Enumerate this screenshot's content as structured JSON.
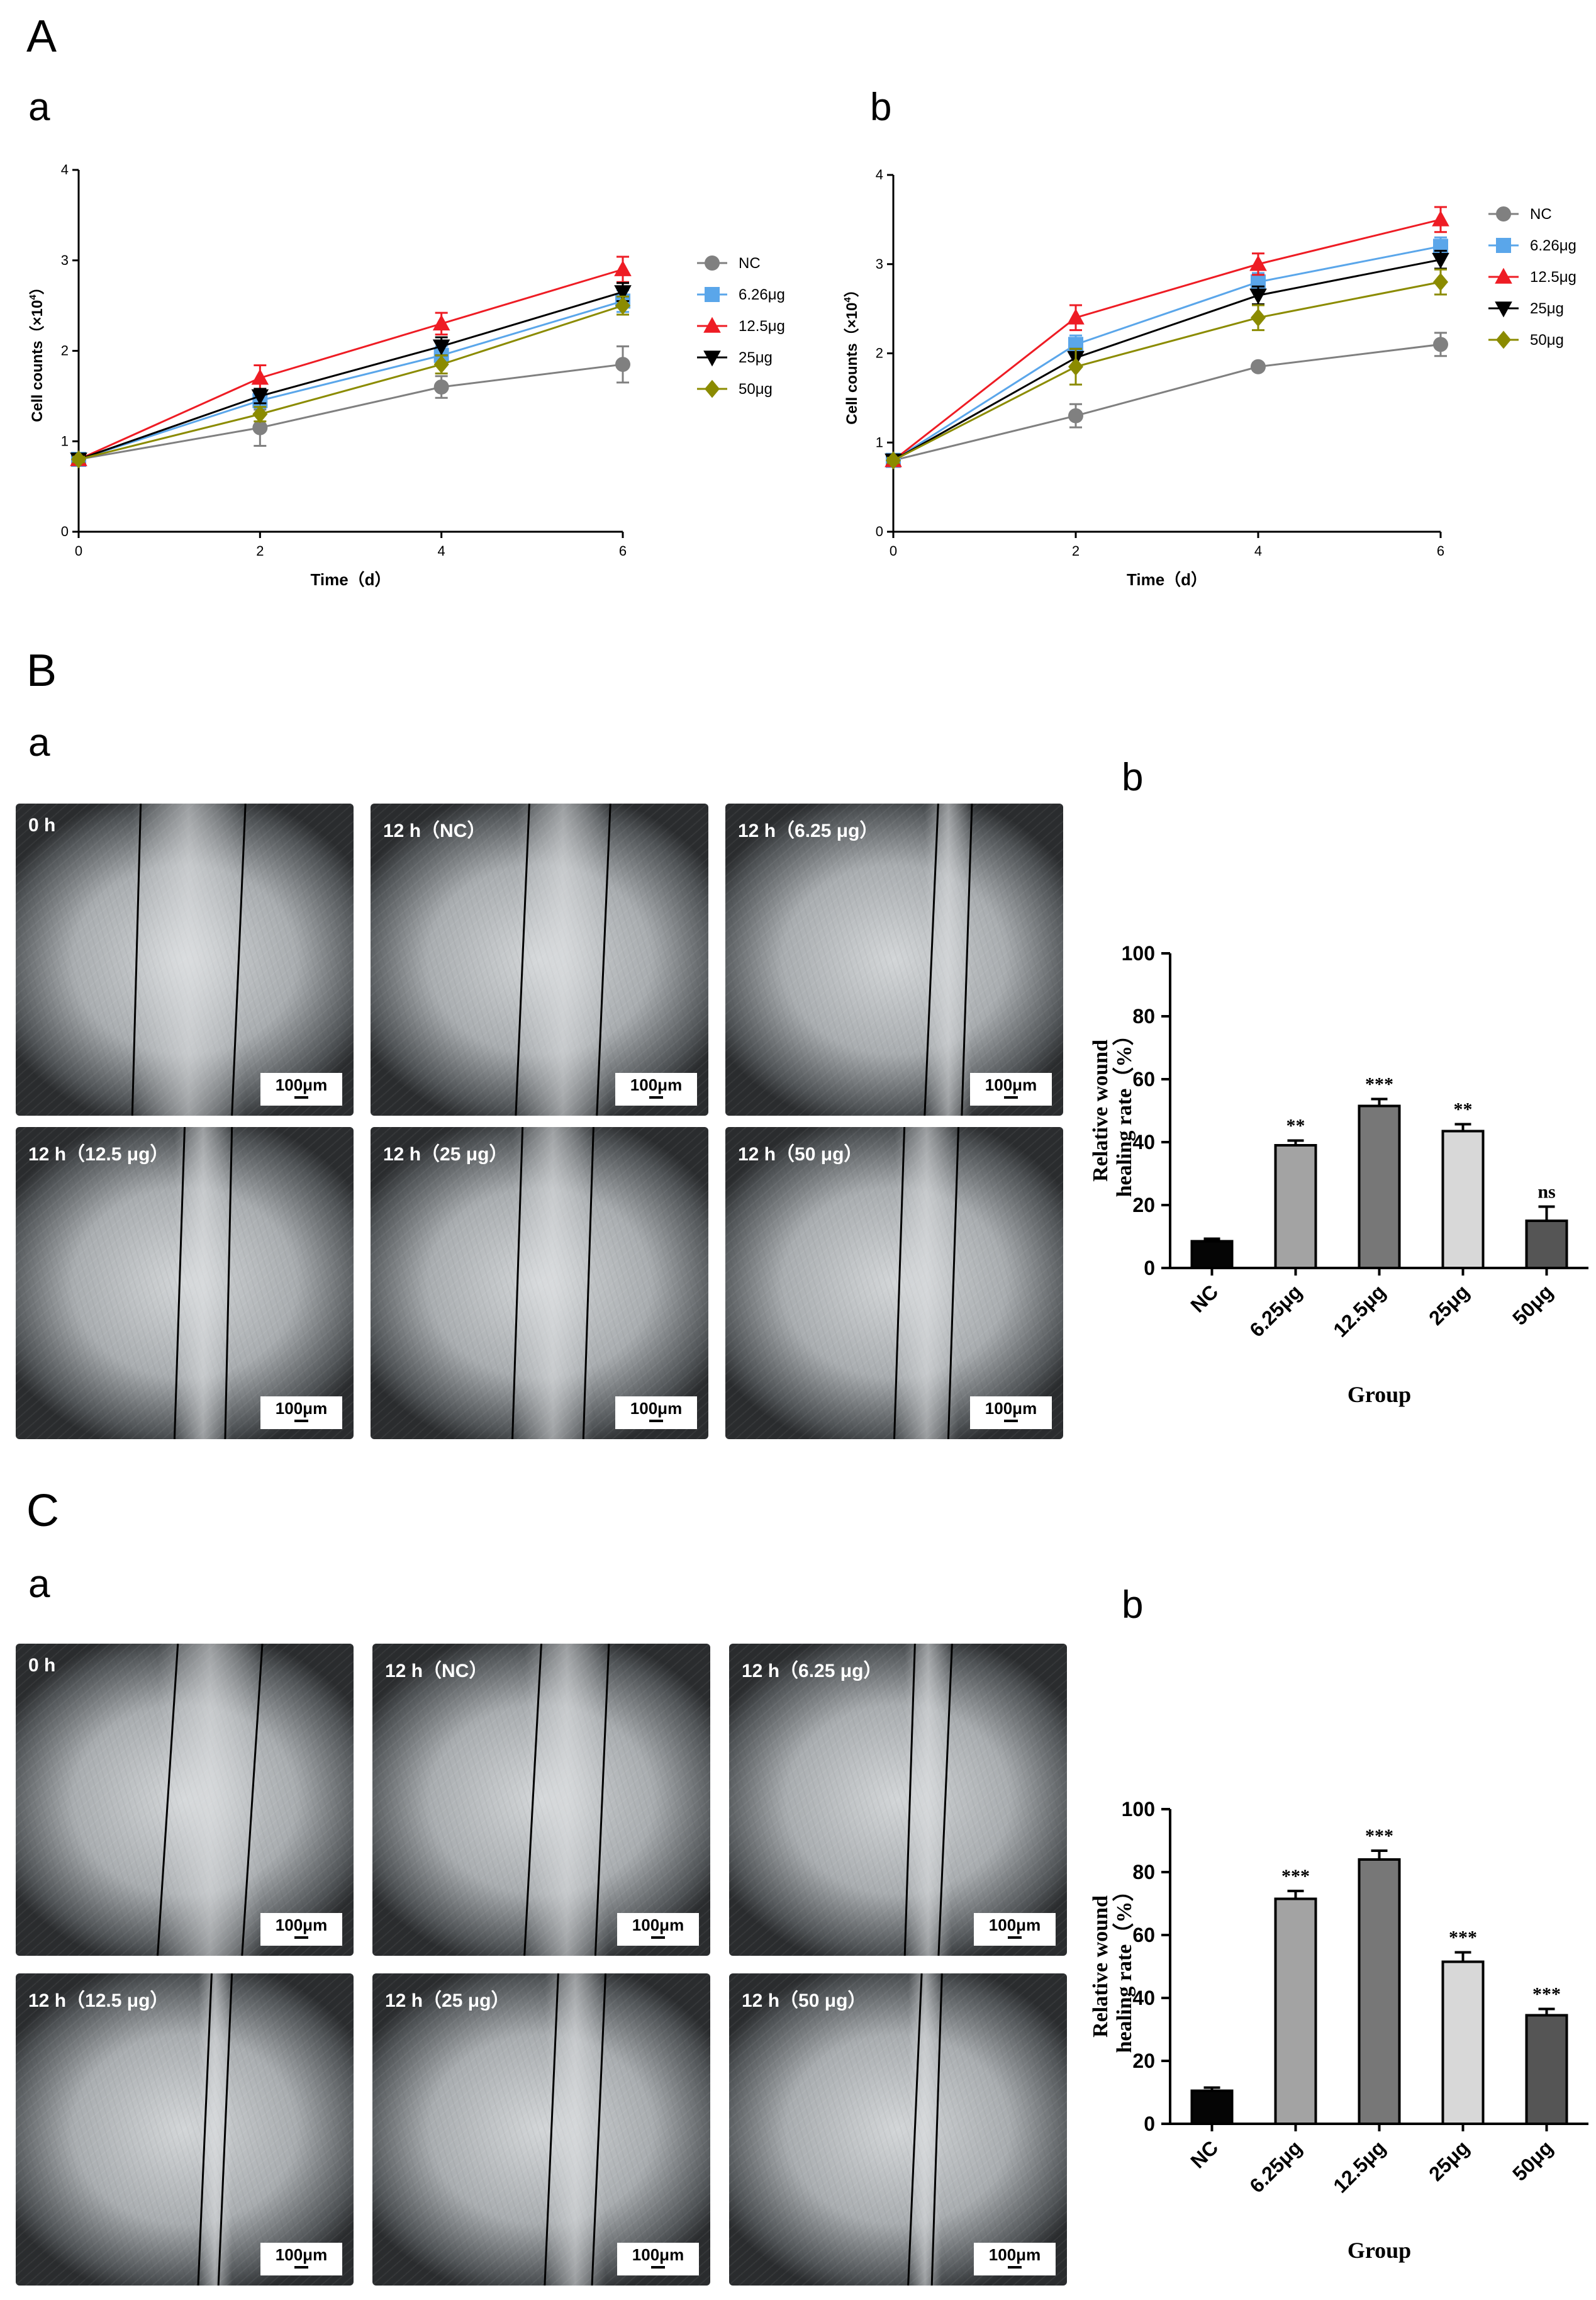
{
  "panels": {
    "A": "A",
    "B": "B",
    "C": "C"
  },
  "sublabels": {
    "Aa": "a",
    "Ab": "b",
    "Ba": "a",
    "Bb": "b",
    "Ca": "a",
    "Cb": "b"
  },
  "chart_data": [
    {
      "id": "A-a",
      "type": "line",
      "xlabel": "Time（d）",
      "ylabel": "Cell counts（×10",
      "ylabel_exp": "4",
      "ylabel_close": "）",
      "x": [
        0,
        2,
        4,
        6
      ],
      "xlim": [
        0,
        6
      ],
      "ylim": [
        0,
        4
      ],
      "xticks": [
        "0",
        "2",
        "4",
        "6"
      ],
      "yticks": [
        "0",
        "1",
        "2",
        "3",
        "4"
      ],
      "series": [
        {
          "name": "NC",
          "color": "#808080",
          "marker": "circle",
          "values": [
            0.8,
            1.15,
            1.6,
            1.85
          ],
          "err": [
            0.03,
            0.2,
            0.12,
            0.2
          ]
        },
        {
          "name": "6.26μg",
          "color": "#5aa6ea",
          "marker": "square",
          "values": [
            0.8,
            1.45,
            1.95,
            2.55
          ],
          "err": [
            0.03,
            0.08,
            0.1,
            0.12
          ]
        },
        {
          "name": "12.5μg",
          "color": "#ee1c24",
          "marker": "triangle-up",
          "values": [
            0.8,
            1.7,
            2.3,
            2.9
          ],
          "err": [
            0.03,
            0.14,
            0.12,
            0.14
          ]
        },
        {
          "name": "25μg",
          "color": "#000000",
          "marker": "triangle-down",
          "values": [
            0.8,
            1.5,
            2.05,
            2.65
          ],
          "err": [
            0.03,
            0.08,
            0.1,
            0.1
          ]
        },
        {
          "name": "50μg",
          "color": "#8b8b00",
          "marker": "diamond",
          "values": [
            0.8,
            1.3,
            1.85,
            2.5
          ],
          "err": [
            0.03,
            0.08,
            0.1,
            0.1
          ]
        }
      ]
    },
    {
      "id": "A-b",
      "type": "line",
      "xlabel": "Time（d）",
      "ylabel": "Cell counts（×10",
      "ylabel_exp": "4",
      "ylabel_close": "）",
      "x": [
        0,
        2,
        4,
        6
      ],
      "xlim": [
        0,
        6
      ],
      "ylim": [
        0,
        4
      ],
      "xticks": [
        "0",
        "2",
        "4",
        "6"
      ],
      "yticks": [
        "0",
        "1",
        "2",
        "3",
        "4"
      ],
      "series": [
        {
          "name": "NC",
          "color": "#808080",
          "marker": "circle",
          "values": [
            0.8,
            1.3,
            1.85,
            2.1
          ],
          "err": [
            0.03,
            0.13,
            0.04,
            0.13
          ]
        },
        {
          "name": "6.26μg",
          "color": "#5aa6ea",
          "marker": "square",
          "values": [
            0.8,
            2.1,
            2.8,
            3.2
          ],
          "err": [
            0.03,
            0.1,
            0.1,
            0.1
          ]
        },
        {
          "name": "12.5μg",
          "color": "#ee1c24",
          "marker": "triangle-up",
          "values": [
            0.8,
            2.4,
            3.0,
            3.5
          ],
          "err": [
            0.03,
            0.14,
            0.12,
            0.14
          ]
        },
        {
          "name": "25μg",
          "color": "#000000",
          "marker": "triangle-down",
          "values": [
            0.8,
            1.95,
            2.65,
            3.05
          ],
          "err": [
            0.03,
            0.1,
            0.1,
            0.1
          ]
        },
        {
          "name": "50μg",
          "color": "#8b8b00",
          "marker": "diamond",
          "values": [
            0.8,
            1.85,
            2.4,
            2.8
          ],
          "err": [
            0.03,
            0.2,
            0.14,
            0.14
          ]
        }
      ]
    },
    {
      "id": "B-b",
      "type": "bar",
      "title": "",
      "xlabel": "Group",
      "ylabel_line1": "Relative wound",
      "ylabel_line2": "healing rate（%）",
      "categories": [
        "NC",
        "6.25μg",
        "12.5μg",
        "25μg",
        "50μg"
      ],
      "values": [
        8.5,
        39,
        51.5,
        43.5,
        15
      ],
      "err": [
        0.8,
        1.5,
        2.2,
        2.2,
        4.5
      ],
      "sig": [
        "",
        "**",
        "***",
        "**",
        "ns"
      ],
      "colors": [
        "#050505",
        "#a3a3a3",
        "#777777",
        "#d8d8d8",
        "#555555"
      ],
      "ylim": [
        0,
        100
      ],
      "yticks": [
        "0",
        "20",
        "40",
        "60",
        "80",
        "100"
      ]
    },
    {
      "id": "C-b",
      "type": "bar",
      "title": "",
      "xlabel": "Group",
      "ylabel_line1": "Relative wound",
      "ylabel_line2": "healing rate（%）",
      "categories": [
        "NC",
        "6.25μg",
        "12.5μg",
        "25μg",
        "50μg"
      ],
      "values": [
        10.5,
        71.5,
        84,
        51.5,
        34.5
      ],
      "err": [
        1,
        2.5,
        2.8,
        3,
        2
      ],
      "sig": [
        "",
        "***",
        "***",
        "***",
        "***"
      ],
      "colors": [
        "#050505",
        "#a3a3a3",
        "#777777",
        "#d8d8d8",
        "#555555"
      ],
      "ylim": [
        0,
        100
      ],
      "yticks": [
        "0",
        "20",
        "40",
        "60",
        "80",
        "100"
      ]
    }
  ],
  "micrographs": {
    "B": [
      {
        "label": "0 h",
        "scale": "100μm"
      },
      {
        "label": "12 h（NC）",
        "scale": "100μm"
      },
      {
        "label": "12 h（6.25 μg）",
        "scale": "100μm"
      },
      {
        "label": "12 h（12.5 μg）",
        "scale": "100μm"
      },
      {
        "label": "12 h（25 μg）",
        "scale": "100μm"
      },
      {
        "label": "12 h（50 μg）",
        "scale": "100μm"
      }
    ],
    "C": [
      {
        "label": "0 h",
        "scale": "100μm"
      },
      {
        "label": "12 h（NC）",
        "scale": "100μm"
      },
      {
        "label": "12 h（6.25 μg）",
        "scale": "100μm"
      },
      {
        "label": "12 h（12.5 μg）",
        "scale": "100μm"
      },
      {
        "label": "12 h（25 μg）",
        "scale": "100μm"
      },
      {
        "label": "12 h（50 μg）",
        "scale": "100μm"
      }
    ]
  }
}
